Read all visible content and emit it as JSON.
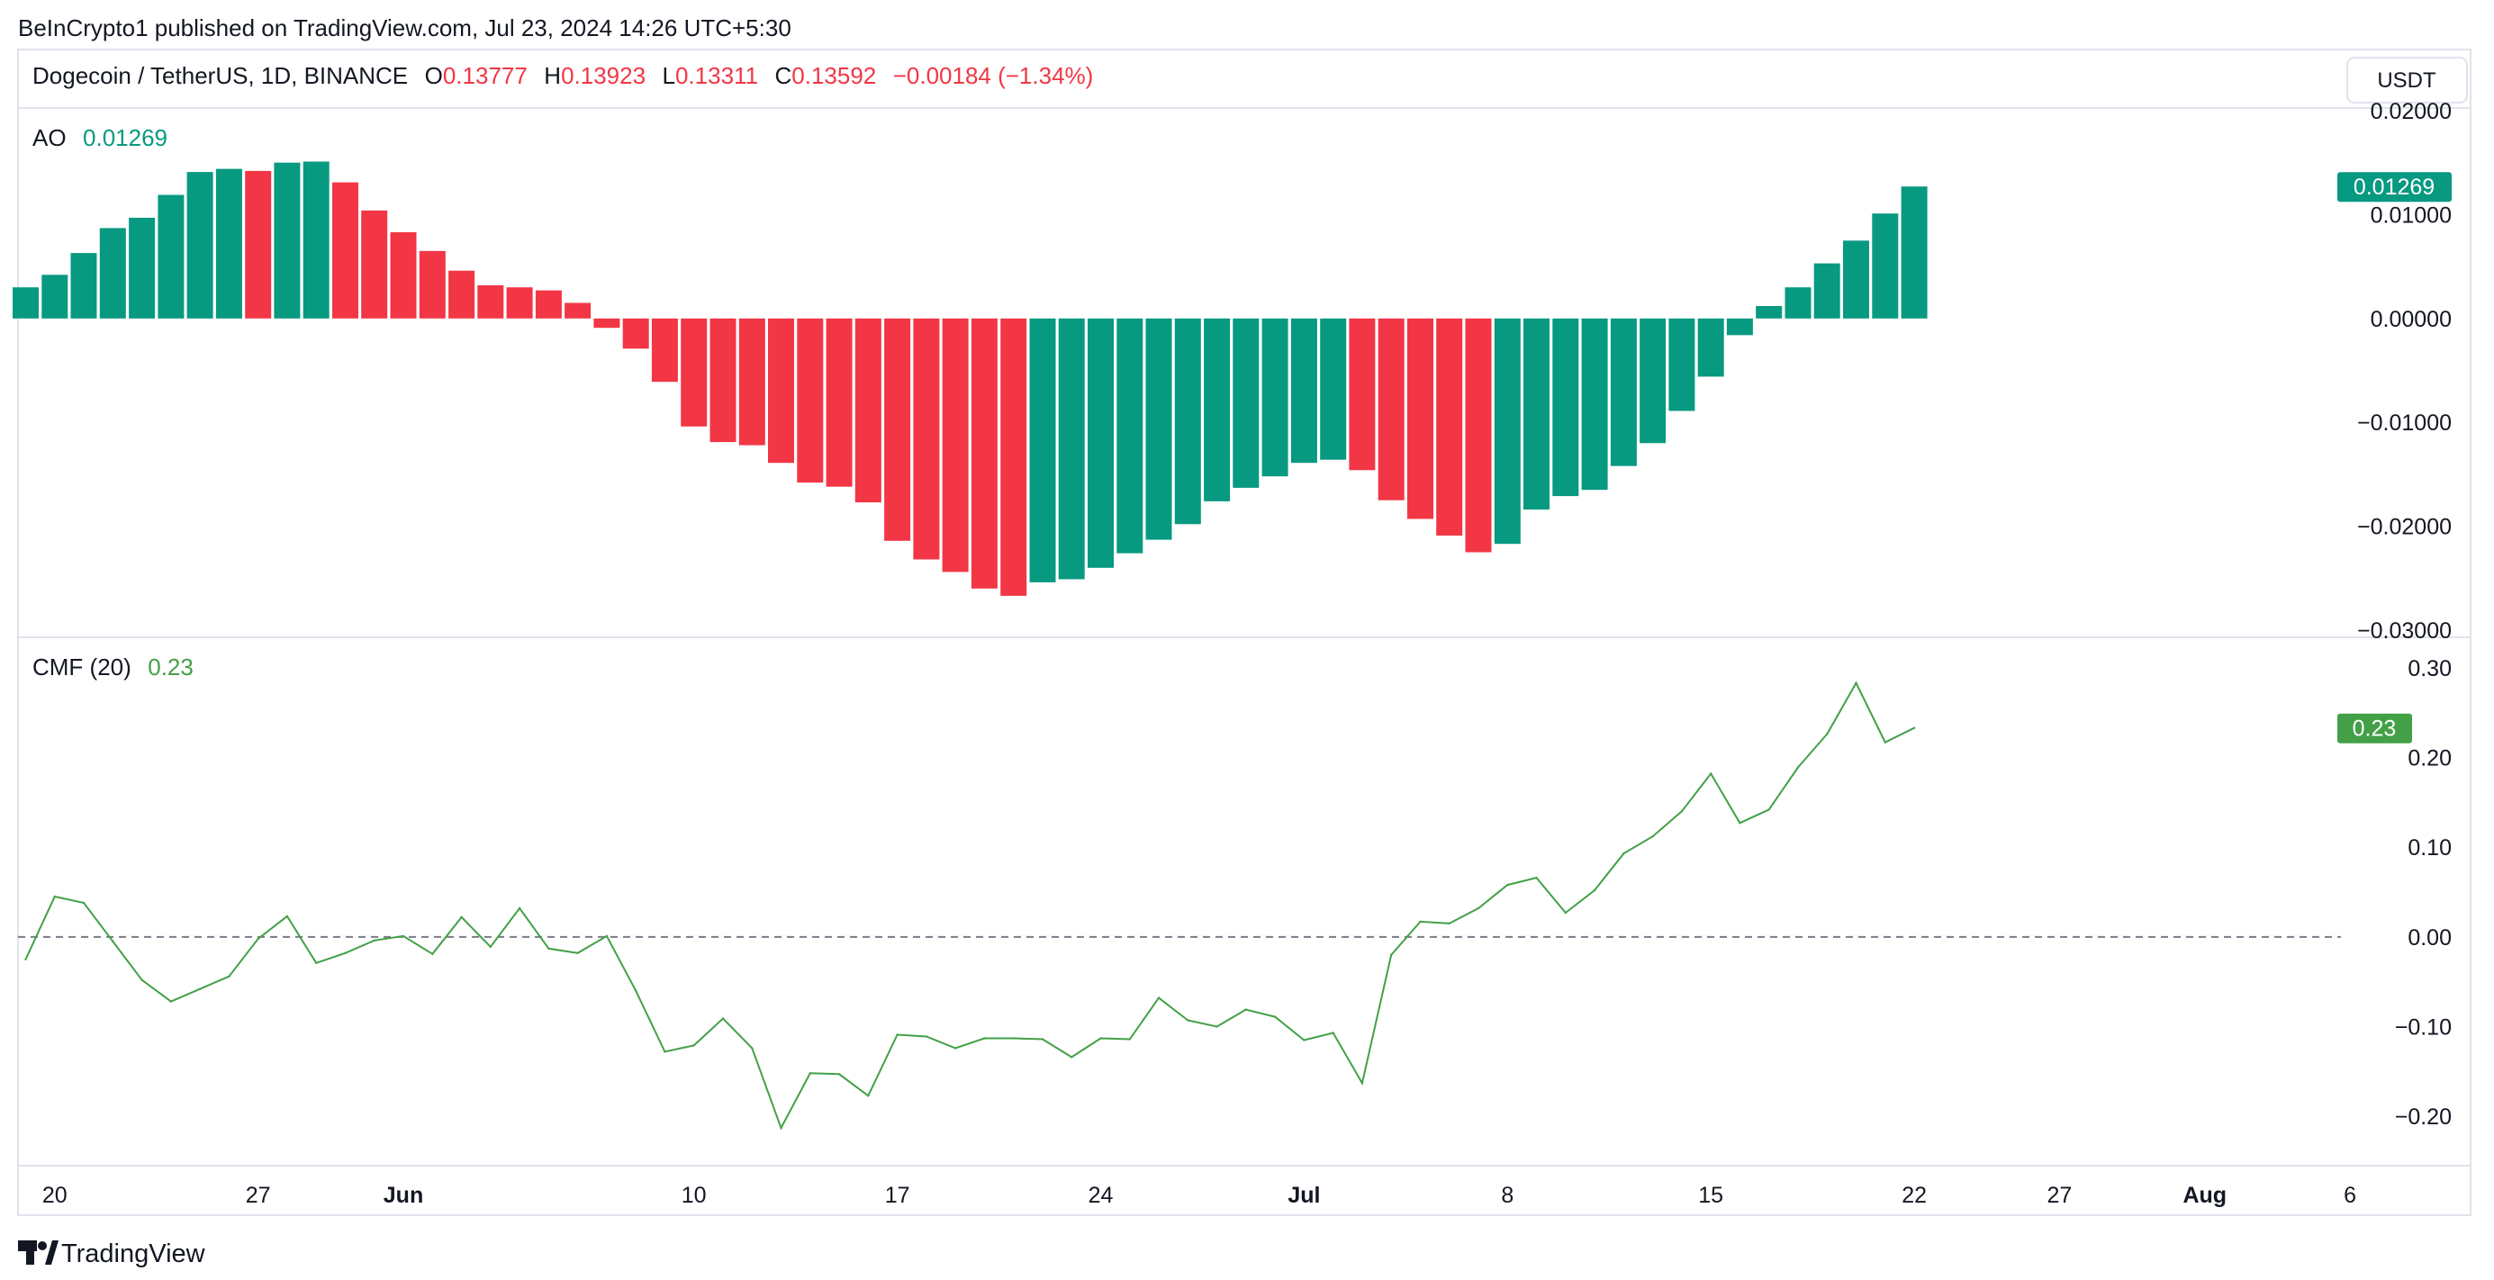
{
  "header": {
    "published": "BeInCrypto1 published on TradingView.com, Jul 23, 2024 14:26 UTC+5:30",
    "symbol": "Dogecoin / TetherUS, 1D, BINANCE",
    "ohlc": {
      "o_label": "O",
      "o_value": "0.13777",
      "h_label": "H",
      "h_value": "0.13923",
      "l_label": "L",
      "l_value": "0.13311",
      "c_label": "C",
      "c_value": "0.13592",
      "change": "−0.00184 (−1.34%)"
    },
    "currency": "USDT"
  },
  "colors": {
    "up": "#089981",
    "down": "#f23645",
    "cmf_line": "#43a047",
    "ohlc_text": "#f23645"
  },
  "footer": {
    "brand": "TradingView"
  },
  "chart_data": [
    {
      "type": "bar",
      "title": "AO",
      "current_value": "0.01269",
      "ylim": [
        -0.03,
        0.02
      ],
      "y_ticks": [
        "0.02000",
        "0.01000",
        "0.00000",
        "−0.01000",
        "−0.02000",
        "−0.03000"
      ],
      "y_tick_values": [
        0.02,
        0.01,
        0,
        -0.01,
        -0.02,
        -0.03
      ],
      "values": [
        0.003,
        0.0042,
        0.0063,
        0.0087,
        0.0097,
        0.0119,
        0.0141,
        0.0144,
        0.0142,
        0.015,
        0.0151,
        0.0131,
        0.0104,
        0.0083,
        0.0065,
        0.0046,
        0.0032,
        0.003,
        0.0027,
        0.0015,
        -0.0009,
        -0.0029,
        -0.0061,
        -0.0104,
        -0.0119,
        -0.0122,
        -0.0139,
        -0.0158,
        -0.0162,
        -0.0177,
        -0.0214,
        -0.0232,
        -0.0244,
        -0.026,
        -0.0267,
        -0.0254,
        -0.0251,
        -0.024,
        -0.0226,
        -0.0213,
        -0.0198,
        -0.0176,
        -0.0163,
        -0.0152,
        -0.0139,
        -0.0136,
        -0.0146,
        -0.0175,
        -0.0193,
        -0.0209,
        -0.0225,
        -0.0217,
        -0.0184,
        -0.0171,
        -0.0165,
        -0.0142,
        -0.012,
        -0.0089,
        -0.0056,
        -0.0016,
        0.0012,
        0.003,
        0.0053,
        0.0075,
        0.0101,
        0.0127
      ],
      "direction": [
        "up",
        "up",
        "up",
        "up",
        "up",
        "up",
        "up",
        "up",
        "down",
        "up",
        "up",
        "down",
        "down",
        "down",
        "down",
        "down",
        "down",
        "down",
        "down",
        "down",
        "down",
        "down",
        "down",
        "down",
        "down",
        "down",
        "down",
        "down",
        "down",
        "down",
        "down",
        "down",
        "down",
        "down",
        "down",
        "up",
        "up",
        "up",
        "up",
        "up",
        "up",
        "up",
        "up",
        "up",
        "up",
        "up",
        "down",
        "down",
        "down",
        "down",
        "down",
        "up",
        "up",
        "up",
        "up",
        "up",
        "up",
        "up",
        "up",
        "up",
        "up",
        "up",
        "up",
        "up",
        "up",
        "up"
      ]
    },
    {
      "type": "line",
      "title": "CMF (20)",
      "current_value": "0.23",
      "ylim": [
        -0.25,
        0.33
      ],
      "y_ticks": [
        "0.30",
        "0.20",
        "0.10",
        "0.00",
        "−0.10",
        "−0.20"
      ],
      "y_tick_values": [
        0.3,
        0.2,
        0.1,
        0,
        -0.1,
        -0.2
      ],
      "zero_line": true,
      "values": [
        -0.025,
        0.045,
        0.038,
        -0.005,
        -0.048,
        -0.072,
        -0.058,
        -0.044,
        -0.002,
        0.023,
        -0.029,
        -0.018,
        -0.004,
        0.001,
        -0.019,
        0.022,
        -0.011,
        0.032,
        -0.013,
        -0.018,
        0.001,
        -0.06,
        -0.128,
        -0.121,
        -0.091,
        -0.124,
        -0.213,
        -0.152,
        -0.153,
        -0.177,
        -0.109,
        -0.111,
        -0.124,
        -0.113,
        -0.113,
        -0.114,
        -0.134,
        -0.113,
        -0.114,
        -0.068,
        -0.093,
        -0.1,
        -0.081,
        -0.089,
        -0.115,
        -0.107,
        -0.163,
        -0.02,
        0.017,
        0.015,
        0.032,
        0.058,
        0.066,
        0.027,
        0.052,
        0.093,
        0.112,
        0.14,
        0.182,
        0.127,
        0.142,
        0.189,
        0.226,
        0.283,
        0.217,
        0.233
      ]
    }
  ],
  "x_axis": {
    "ticks": [
      {
        "label": "20",
        "index": 1,
        "bold": false
      },
      {
        "label": "27",
        "index": 8,
        "bold": false
      },
      {
        "label": "Jun",
        "index": 13,
        "bold": true
      },
      {
        "label": "10",
        "index": 23,
        "bold": false
      },
      {
        "label": "17",
        "index": 30,
        "bold": false
      },
      {
        "label": "24",
        "index": 37,
        "bold": false
      },
      {
        "label": "Jul",
        "index": 44,
        "bold": true
      },
      {
        "label": "8",
        "index": 51,
        "bold": false
      },
      {
        "label": "15",
        "index": 58,
        "bold": false
      },
      {
        "label": "22",
        "index": 65,
        "bold": false
      },
      {
        "label": "27",
        "index": 70,
        "bold": false
      },
      {
        "label": "Aug",
        "index": 75,
        "bold": true
      },
      {
        "label": "6",
        "index": 80,
        "bold": false
      }
    ]
  }
}
